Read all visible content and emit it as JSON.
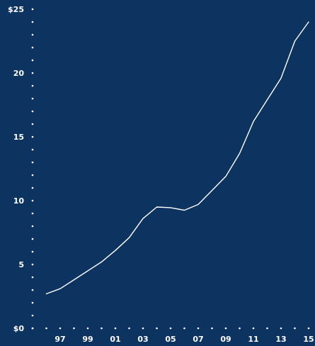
{
  "chart_data": {
    "type": "line",
    "x": [
      1996,
      1997,
      1998,
      1999,
      2000,
      2001,
      2002,
      2003,
      2004,
      2005,
      2006,
      2007,
      2008,
      2009,
      2010,
      2011,
      2012,
      2013,
      2014,
      2015
    ],
    "series": [
      {
        "values": [
          2.7,
          3.1,
          3.8,
          4.5,
          5.2,
          6.1,
          7.1,
          8.6,
          9.5,
          9.45,
          9.25,
          9.7,
          10.8,
          11.9,
          13.7,
          16.2,
          17.9,
          19.6,
          22.5,
          24.0
        ]
      }
    ],
    "xlim": [
      1995,
      2015
    ],
    "ylim": [
      0,
      25
    ],
    "x_ticks": [
      {
        "value": 1997,
        "label": "97"
      },
      {
        "value": 1999,
        "label": "99"
      },
      {
        "value": 2001,
        "label": "01"
      },
      {
        "value": 2003,
        "label": "03"
      },
      {
        "value": 2005,
        "label": "05"
      },
      {
        "value": 2007,
        "label": "07"
      },
      {
        "value": 2009,
        "label": "09"
      },
      {
        "value": 2011,
        "label": "11"
      },
      {
        "value": 2013,
        "label": "13"
      },
      {
        "value": 2015,
        "label": "15"
      }
    ],
    "y_ticks": [
      {
        "value": 0,
        "label": "$0"
      },
      {
        "value": 5,
        "label": "5"
      },
      {
        "value": 10,
        "label": "10"
      },
      {
        "value": 15,
        "label": "15"
      },
      {
        "value": 20,
        "label": "20"
      },
      {
        "value": 25,
        "label": "$25"
      }
    ],
    "title": "",
    "xlabel": "",
    "ylabel": "",
    "grid": false,
    "colors": {
      "background": "#0d3461",
      "line": "#ffffff",
      "text": "#ffffff",
      "axis_dots": "#ffffff"
    }
  }
}
